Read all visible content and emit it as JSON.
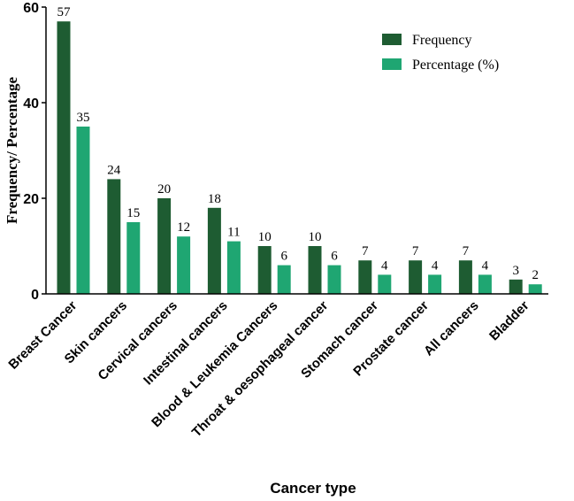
{
  "chart_data": {
    "type": "bar",
    "title": "",
    "xlabel": "Cancer type",
    "ylabel": "Frequency/ Percentage",
    "ylim": [
      0,
      60
    ],
    "yticks": [
      0,
      20,
      40,
      60
    ],
    "grid": false,
    "legend_position": "top-right",
    "categories": [
      "Breast Cancer",
      "Skin cancers",
      "Cervical cancers",
      "Intestinal cancers",
      "Blood & Leukemia Cancers",
      "Throat & oesophageal cancer",
      "Stomach cancer",
      "Prostate cancer",
      "All cancers",
      "Bladder"
    ],
    "series": [
      {
        "name": "Frequency",
        "color": "#1e5c32",
        "values": [
          57,
          24,
          20,
          18,
          10,
          10,
          7,
          7,
          7,
          3
        ]
      },
      {
        "name": "Percentage (%)",
        "color": "#1fa672",
        "values": [
          35,
          15,
          12,
          11,
          6,
          6,
          4,
          4,
          4,
          2
        ]
      }
    ]
  }
}
